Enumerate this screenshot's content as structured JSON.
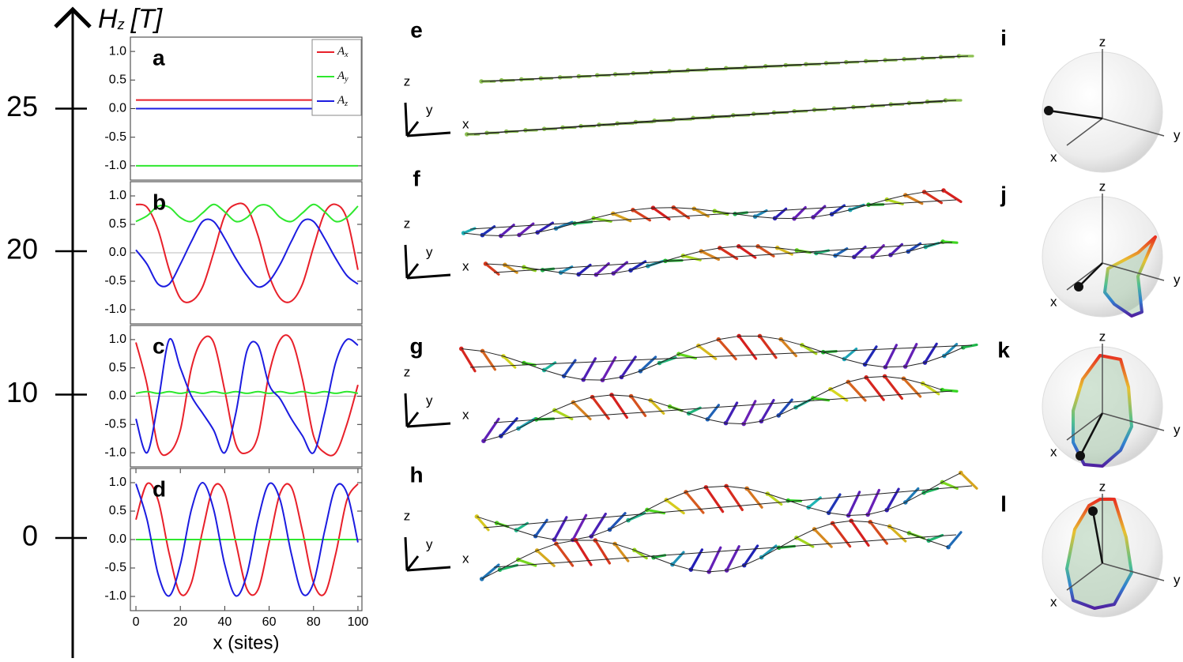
{
  "field_axis": {
    "symbol": "H",
    "sub": "z",
    "unit": "[T]",
    "ticks": [
      25,
      20,
      10,
      0
    ]
  },
  "chart_data": [
    {
      "type": "line",
      "label": "a",
      "x": [
        0,
        100
      ],
      "series": [
        {
          "name": "Ax",
          "color": "#e8202a",
          "values": [
            0.15,
            0.15
          ]
        },
        {
          "name": "Ay",
          "color": "#2ee82e",
          "values": [
            -1.0,
            -1.0
          ]
        },
        {
          "name": "Az",
          "color": "#1c1ce0",
          "values": [
            0.0,
            0.0
          ]
        }
      ],
      "xlim": [
        -2.5,
        101.8
      ],
      "ylim": [
        -1.25,
        1.25
      ],
      "yticks": [
        {
          "value": 1,
          "label": "1.0"
        },
        0.5,
        {
          "value": 0,
          "label": "0.0"
        },
        -0.5,
        {
          "value": -1,
          "label": "-1.0"
        }
      ],
      "legend": "upper right"
    },
    {
      "type": "line",
      "label": "b",
      "x": [
        0,
        5,
        10,
        15,
        20,
        25,
        30,
        35,
        40,
        45,
        50,
        55,
        60,
        65,
        70,
        75,
        80,
        85,
        90,
        95,
        100
      ],
      "series": [
        {
          "color": "#e8202a",
          "values": [
            0.85,
            0.8,
            0.4,
            -0.3,
            -0.8,
            -0.85,
            -0.6,
            0.0,
            0.65,
            0.85,
            0.8,
            0.3,
            -0.4,
            -0.8,
            -0.85,
            -0.55,
            0.1,
            0.7,
            0.85,
            0.6,
            -0.3
          ]
        },
        {
          "color": "#2ee82e",
          "values": [
            0.55,
            0.65,
            0.82,
            0.8,
            0.62,
            0.55,
            0.7,
            0.85,
            0.72,
            0.55,
            0.62,
            0.82,
            0.82,
            0.62,
            0.55,
            0.7,
            0.85,
            0.72,
            0.55,
            0.62,
            0.82
          ]
        },
        {
          "color": "#1c1ce0",
          "values": [
            0.05,
            -0.2,
            -0.55,
            -0.55,
            -0.2,
            0.2,
            0.55,
            0.55,
            0.25,
            -0.1,
            -0.4,
            -0.6,
            -0.5,
            -0.2,
            0.2,
            0.55,
            0.55,
            0.25,
            -0.1,
            -0.4,
            -0.55
          ]
        }
      ],
      "xlim": [
        -2.5,
        101.8
      ],
      "ylim": [
        -1.25,
        1.25
      ],
      "yticks": [
        {
          "value": 1,
          "label": "1.0"
        },
        0.5,
        {
          "value": 0,
          "label": "0.0"
        },
        -0.5,
        {
          "value": -1,
          "label": "-1.0"
        }
      ]
    },
    {
      "type": "line",
      "label": "c",
      "x": [
        0,
        5,
        10,
        15,
        20,
        25,
        30,
        35,
        40,
        45,
        50,
        55,
        60,
        65,
        70,
        75,
        80,
        85,
        90,
        95,
        100
      ],
      "series": [
        {
          "color": "#e8202a",
          "values": [
            0.95,
            0.2,
            -0.9,
            -1.0,
            -0.6,
            0.5,
            1.0,
            0.95,
            0.1,
            -0.85,
            -1.0,
            -0.7,
            0.4,
            1.0,
            1.0,
            0.3,
            -0.7,
            -1.0,
            -1.0,
            -0.5,
            0.2
          ]
        },
        {
          "color": "#2ee82e",
          "values": [
            0.05,
            0.08,
            0.05,
            0.08,
            0.05,
            0.08,
            0.05,
            0.08,
            0.05,
            0.08,
            0.05,
            0.08,
            0.05,
            0.08,
            0.05,
            0.08,
            0.05,
            0.08,
            0.05,
            0.08,
            0.05
          ]
        },
        {
          "color": "#1c1ce0",
          "values": [
            -0.4,
            -1.0,
            -0.1,
            1.0,
            0.5,
            0.0,
            -0.3,
            -0.6,
            -1.0,
            -0.3,
            0.8,
            0.9,
            0.2,
            -0.05,
            -0.4,
            -0.7,
            -1.0,
            -0.3,
            0.6,
            1.0,
            0.9
          ]
        }
      ],
      "xlim": [
        -2.5,
        101.8
      ],
      "ylim": [
        -1.25,
        1.25
      ],
      "yticks": [
        {
          "value": 1,
          "label": "1.0"
        },
        0.5,
        {
          "value": 0,
          "label": "0.0"
        },
        -0.5,
        {
          "value": -1,
          "label": "-1.0"
        }
      ]
    },
    {
      "type": "line",
      "label": "d",
      "x": [
        0,
        5,
        10,
        15,
        20,
        25,
        30,
        35,
        40,
        45,
        50,
        55,
        60,
        65,
        70,
        75,
        80,
        85,
        90,
        95,
        100
      ],
      "series": [
        {
          "color": "#e8202a",
          "values": [
            0.35,
            0.98,
            0.69,
            -0.25,
            -0.95,
            -0.76,
            0.15,
            0.92,
            0.82,
            -0.05,
            -0.87,
            -0.88,
            -0.05,
            0.82,
            0.92,
            0.15,
            -0.76,
            -0.95,
            -0.25,
            0.69,
            0.98
          ]
        },
        {
          "color": "#2ee82e",
          "values": [
            0,
            0,
            0,
            0,
            0,
            0,
            0,
            0,
            0,
            0,
            0,
            0,
            0,
            0,
            0,
            0,
            0,
            0,
            0,
            0,
            0
          ]
        },
        {
          "color": "#1c1ce0",
          "values": [
            0.98,
            0.35,
            -0.61,
            -0.99,
            -0.44,
            0.53,
            1.0,
            0.53,
            -0.44,
            -0.99,
            -0.61,
            0.35,
            0.98,
            0.69,
            -0.25,
            -0.95,
            -0.76,
            0.15,
            0.92,
            0.82,
            -0.05
          ]
        }
      ],
      "xlim": [
        -2.5,
        101.8
      ],
      "ylim": [
        -1.25,
        1.25
      ],
      "yticks": [
        {
          "value": 1,
          "label": "1.0"
        },
        0.5,
        {
          "value": 0,
          "label": "0.0"
        },
        -0.5,
        {
          "value": -1,
          "label": "-1.0"
        }
      ],
      "xticks": [
        0,
        20,
        40,
        60,
        80,
        100
      ],
      "xlabel": "x (sites)"
    }
  ],
  "chain_panels": [
    "e",
    "f",
    "g",
    "h"
  ],
  "sphere_panels": [
    "i",
    "j",
    "k",
    "l"
  ],
  "axis_names": {
    "x": "x",
    "y": "y",
    "z": "z"
  }
}
